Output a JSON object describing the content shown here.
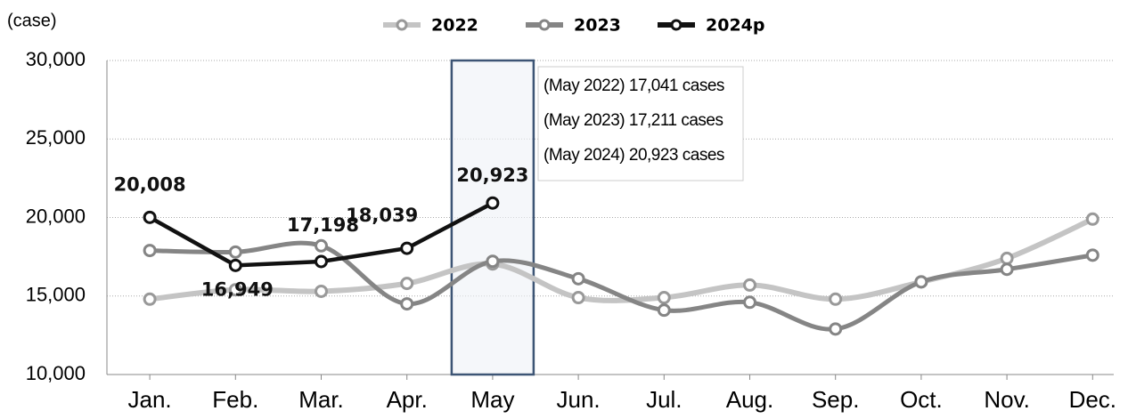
{
  "chart_data": {
    "type": "line",
    "y_unit": "(case)",
    "categories": [
      "Jan.",
      "Feb.",
      "Mar.",
      "Apr.",
      "May",
      "Jun.",
      "Jul.",
      "Aug.",
      "Sep.",
      "Oct.",
      "Nov.",
      "Dec."
    ],
    "series": [
      {
        "name": "2022",
        "color": "#c4c4c4",
        "values": [
          14800,
          15400,
          15300,
          15800,
          17041,
          14900,
          14900,
          15700,
          14800,
          15900,
          17400,
          19900
        ]
      },
      {
        "name": "2023",
        "color": "#858585",
        "values": [
          17900,
          17800,
          18200,
          14500,
          17211,
          16100,
          14100,
          14600,
          12900,
          15900,
          16700,
          17600
        ]
      },
      {
        "name": "2024p",
        "color": "#111111",
        "values": [
          20008,
          16949,
          17198,
          18039,
          20923,
          null,
          null,
          null,
          null,
          null,
          null,
          null
        ],
        "value_labels": [
          "20,008",
          "16,949",
          "17,198",
          "18,039",
          "20,923",
          null,
          null,
          null,
          null,
          null,
          null,
          null
        ]
      }
    ],
    "ylim": [
      10000,
      30000
    ],
    "yticks": [
      {
        "value": 10000,
        "label": "10,000"
      },
      {
        "value": 15000,
        "label": "15,000"
      },
      {
        "value": 20000,
        "label": "20,000"
      },
      {
        "value": 25000,
        "label": "25,000"
      },
      {
        "value": 30000,
        "label": "30,000"
      }
    ],
    "grid": true,
    "highlight_category": 4,
    "annotations": [
      "(May 2022) 17,041 cases",
      "(May 2023) 17,211 cases",
      "(May 2024) 20,923 cases"
    ]
  }
}
